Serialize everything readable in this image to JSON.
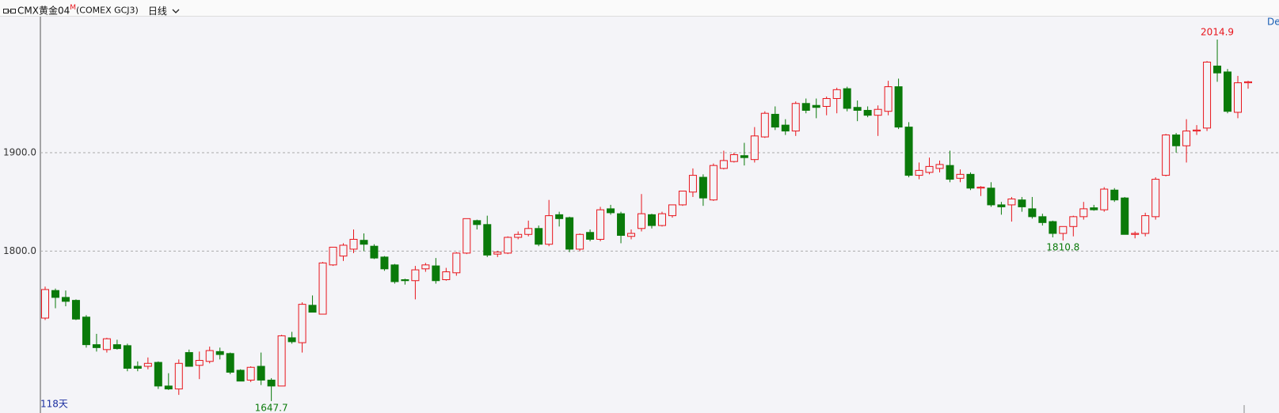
{
  "header": {
    "symbol": "CMX黄金04",
    "marker": "M",
    "code": "(COMEX GCJ3)",
    "period": "日线"
  },
  "chart_data": {
    "type": "candlestick",
    "day_count_label": "118天",
    "corner_label": "De",
    "up_color": "#e8141b",
    "down_color": "#0a7a0a",
    "grid": true,
    "ylim": [
      1638,
      2039
    ],
    "yticks": [
      {
        "value": 1800,
        "label": "1800.0"
      },
      {
        "value": 1900,
        "label": "1900.0"
      }
    ],
    "open": [
      1732,
      1760,
      1753,
      1750,
      1733,
      1705,
      1700,
      1705,
      1704,
      1683,
      1683,
      1687,
      1663,
      1660,
      1697,
      1684,
      1688,
      1698,
      1696,
      1679,
      1669,
      1683,
      1669,
      1663,
      1712,
      1707,
      1745,
      1736,
      1786,
      1795,
      1802,
      1811,
      1805,
      1794,
      1786,
      1771,
      1770,
      1782,
      1785,
      1771,
      1778,
      1798,
      1831,
      1827,
      1797,
      1798,
      1814,
      1817,
      1823,
      1807,
      1837,
      1834,
      1802,
      1819,
      1812,
      1843,
      1838,
      1815,
      1823,
      1837,
      1826,
      1836,
      1847,
      1860,
      1875,
      1852,
      1884,
      1891,
      1897,
      1893,
      1916,
      1939,
      1928,
      1922,
      1950,
      1948,
      1947,
      1955,
      1965,
      1946,
      1943,
      1938,
      1942,
      1967,
      1926,
      1877,
      1880,
      1884,
      1887,
      1874,
      1878,
      1864,
      1864,
      1847,
      1847,
      1852,
      1843,
      1835,
      1830,
      1818,
      1825,
      1835,
      1844,
      1842,
      1862,
      1854,
      1817,
      1818,
      1835,
      1877,
      1918,
      1907,
      1922,
      1925,
      1988,
      1982,
      1941,
      1971
    ],
    "high": [
      1764,
      1762,
      1760,
      1751,
      1735,
      1716,
      1712,
      1710,
      1706,
      1688,
      1692,
      1688,
      1676,
      1690,
      1700,
      1698,
      1703,
      1702,
      1697,
      1680,
      1683,
      1697,
      1671,
      1715,
      1718,
      1748,
      1755,
      1789,
      1804,
      1808,
      1822,
      1818,
      1807,
      1795,
      1787,
      1772,
      1785,
      1788,
      1793,
      1783,
      1799,
      1833,
      1832,
      1836,
      1800,
      1815,
      1820,
      1831,
      1826,
      1852,
      1840,
      1835,
      1818,
      1822,
      1845,
      1847,
      1840,
      1822,
      1858,
      1838,
      1840,
      1847,
      1861,
      1884,
      1878,
      1889,
      1902,
      1900,
      1910,
      1926,
      1942,
      1947,
      1934,
      1952,
      1955,
      1955,
      1957,
      1966,
      1967,
      1953,
      1947,
      1948,
      1973,
      1975.2,
      1931,
      1890,
      1895,
      1892,
      1902,
      1883,
      1880,
      1866,
      1870,
      1850,
      1855,
      1855,
      1855,
      1838,
      1831,
      1825,
      1836,
      1850,
      1847,
      1865,
      1864,
      1855,
      1820,
      1839,
      1875,
      1919,
      1920,
      1934,
      1928,
      1993,
      2014.9,
      1985,
      1978,
      1973
    ],
    "low": [
      1730,
      1742,
      1744,
      1730,
      1702,
      1698,
      1697,
      1700,
      1678,
      1678,
      1680,
      1660,
      1659,
      1654,
      1684,
      1670,
      1686,
      1690,
      1675,
      1668,
      1667,
      1664,
      1647.7,
      1663,
      1706,
      1697,
      1738,
      1736,
      1785,
      1790,
      1798,
      1800,
      1792,
      1780,
      1767,
      1766,
      1751,
      1779,
      1767,
      1770,
      1775,
      1797,
      1822,
      1794,
      1794,
      1797,
      1812,
      1815,
      1805,
      1805,
      1825,
      1799,
      1800,
      1810,
      1810,
      1837,
      1808,
      1812,
      1820,
      1823,
      1825,
      1834,
      1846,
      1855,
      1846,
      1851,
      1883,
      1890,
      1887,
      1890,
      1915,
      1923,
      1918,
      1917,
      1940,
      1935,
      1938,
      1940,
      1942,
      1932,
      1936,
      1917,
      1938,
      1924,
      1875,
      1873,
      1878,
      1880,
      1870,
      1870,
      1862,
      1856,
      1845,
      1837,
      1830,
      1840,
      1833,
      1826,
      1814,
      1810.8,
      1815,
      1832,
      1841,
      1840,
      1850,
      1817,
      1813,
      1815,
      1832,
      1876,
      1900,
      1890,
      1918,
      1922,
      1972,
      1940,
      1935,
      1965
    ],
    "close": [
      1761,
      1753,
      1749,
      1731,
      1705,
      1702,
      1711,
      1701,
      1681,
      1681,
      1686,
      1663,
      1660,
      1686,
      1683,
      1689,
      1699,
      1695,
      1677,
      1668,
      1682,
      1669,
      1663,
      1714,
      1708,
      1746,
      1738,
      1788,
      1804,
      1806,
      1812,
      1807,
      1793,
      1782,
      1769,
      1770,
      1781,
      1786,
      1770,
      1779,
      1798,
      1833,
      1827,
      1796,
      1799,
      1814,
      1817,
      1823,
      1807,
      1836,
      1833,
      1802,
      1817,
      1812,
      1842,
      1839,
      1816,
      1818,
      1838,
      1826,
      1838,
      1847,
      1861,
      1877,
      1854,
      1887,
      1892,
      1898,
      1895,
      1917,
      1940,
      1926,
      1922,
      1950,
      1943,
      1946,
      1955,
      1964,
      1945,
      1943,
      1938,
      1944,
      1967,
      1926,
      1877,
      1882,
      1886,
      1888,
      1873,
      1878,
      1864,
      1865,
      1847,
      1845,
      1853,
      1845,
      1835,
      1829,
      1818,
      1825,
      1835,
      1843,
      1842,
      1863,
      1852,
      1817,
      1818,
      1836,
      1873,
      1918,
      1907,
      1922,
      1923,
      1992,
      1981,
      1942,
      1971,
      1972
    ]
  }
}
